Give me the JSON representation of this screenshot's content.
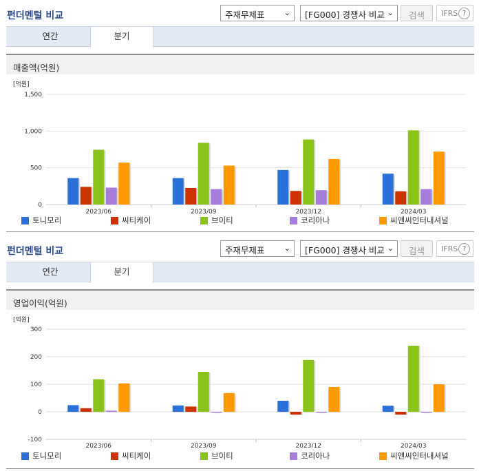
{
  "panels": [
    {
      "header": {
        "title": "펀더멘털 비교",
        "select1": "주재무제표",
        "select2": "[FG000] 경쟁사 비교",
        "search": "검색",
        "ifrs": "IFRS",
        "help": "?"
      },
      "tabs": [
        {
          "label": "연간"
        },
        {
          "label": "분기"
        }
      ],
      "active_tab": 1,
      "chart_title": "매출액(억원)"
    },
    {
      "header": {
        "title": "펀더멘털 비교",
        "select1": "주재무제표",
        "select2": "[FG000] 경쟁사 비교",
        "search": "검색",
        "ifrs": "IFRS",
        "help": "?"
      },
      "tabs": [
        {
          "label": "연간"
        },
        {
          "label": "분기"
        }
      ],
      "active_tab": 1,
      "chart_title": "영업이익(억원)"
    }
  ],
  "chart_data": [
    {
      "type": "bar",
      "unit_label": "[억원]",
      "categories": [
        "2023/06",
        "2023/09",
        "2023/12",
        "2024/03"
      ],
      "ylim": [
        0,
        1500
      ],
      "yticks": [
        0,
        500,
        1000,
        1500
      ],
      "ytick_labels": [
        "0",
        "500",
        "1,000",
        "1,500"
      ],
      "grid": true,
      "legend": "bottom",
      "series": [
        {
          "name": "토니모리",
          "color": "#2b6fd8",
          "values": [
            360,
            360,
            470,
            420
          ]
        },
        {
          "name": "씨티케이",
          "color": "#cc3300",
          "values": [
            240,
            225,
            185,
            180
          ]
        },
        {
          "name": "브이티",
          "color": "#8ac41a",
          "values": [
            745,
            840,
            885,
            1010
          ]
        },
        {
          "name": "코리아나",
          "color": "#a77ddb",
          "values": [
            230,
            210,
            195,
            210
          ]
        },
        {
          "name": "씨앤씨인터내셔널",
          "color": "#ff9900",
          "values": [
            570,
            530,
            620,
            720
          ]
        }
      ]
    },
    {
      "type": "bar",
      "unit_label": "[억원]",
      "categories": [
        "2023/06",
        "2023/09",
        "2023/12",
        "2024/03"
      ],
      "ylim": [
        -100,
        300
      ],
      "yticks": [
        -100,
        0,
        100,
        200,
        300
      ],
      "ytick_labels": [
        "-100",
        "0",
        "100",
        "200",
        "300"
      ],
      "grid": true,
      "legend": "bottom",
      "series": [
        {
          "name": "토니모리",
          "color": "#2b6fd8",
          "values": [
            24,
            23,
            40,
            22
          ]
        },
        {
          "name": "씨티케이",
          "color": "#cc3300",
          "values": [
            13,
            19,
            -10,
            -10
          ]
        },
        {
          "name": "브이티",
          "color": "#8ac41a",
          "values": [
            118,
            145,
            188,
            240
          ]
        },
        {
          "name": "코리아나",
          "color": "#a77ddb",
          "values": [
            4,
            -3,
            -3,
            -3
          ]
        },
        {
          "name": "씨앤씨인터내셔널",
          "color": "#ff9900",
          "values": [
            103,
            68,
            90,
            100
          ]
        }
      ]
    }
  ]
}
